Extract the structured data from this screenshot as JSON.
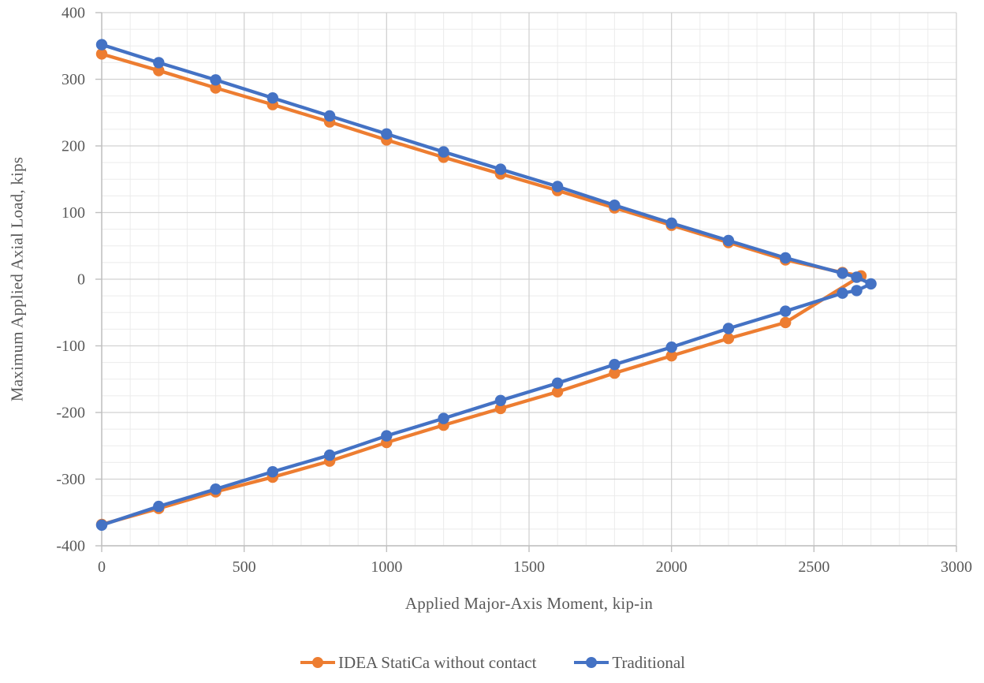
{
  "chart_data": {
    "type": "line",
    "title": "",
    "xlabel": "Applied Major-Axis Moment, kip-in",
    "ylabel": "Maximum Applied Axial Load, kips",
    "xlim": [
      0,
      3000
    ],
    "ylim": [
      -400,
      400
    ],
    "x_major_step": 500,
    "x_minor_step": 100,
    "y_major_step": 100,
    "y_minor_step": 25,
    "x_ticks": [
      0,
      500,
      1000,
      1500,
      2000,
      2500,
      3000
    ],
    "y_ticks": [
      400,
      300,
      200,
      100,
      0,
      -100,
      -200,
      -300,
      -400
    ],
    "grid": true,
    "legend_position": "bottom",
    "series": [
      {
        "name": "IDEA StatiCa without contact",
        "color": "#ED7D31",
        "points": [
          [
            0,
            338
          ],
          [
            200,
            313
          ],
          [
            400,
            287
          ],
          [
            600,
            262
          ],
          [
            800,
            236
          ],
          [
            1000,
            209
          ],
          [
            1200,
            183
          ],
          [
            1400,
            158
          ],
          [
            1600,
            133
          ],
          [
            1800,
            107
          ],
          [
            2000,
            81
          ],
          [
            2200,
            55
          ],
          [
            2400,
            29
          ],
          [
            2600,
            10
          ],
          [
            2665,
            5
          ],
          [
            2400,
            -65
          ],
          [
            2200,
            -89
          ],
          [
            2000,
            -115
          ],
          [
            1800,
            -141
          ],
          [
            1600,
            -169
          ],
          [
            1400,
            -194
          ],
          [
            1200,
            -219
          ],
          [
            1000,
            -245
          ],
          [
            800,
            -273
          ],
          [
            600,
            -297
          ],
          [
            400,
            -319
          ],
          [
            200,
            -344
          ],
          [
            0,
            -368
          ]
        ]
      },
      {
        "name": "Traditional",
        "color": "#4472C4",
        "points": [
          [
            0,
            352
          ],
          [
            200,
            325
          ],
          [
            400,
            299
          ],
          [
            600,
            272
          ],
          [
            800,
            245
          ],
          [
            1000,
            218
          ],
          [
            1200,
            191
          ],
          [
            1400,
            165
          ],
          [
            1600,
            139
          ],
          [
            1800,
            111
          ],
          [
            2000,
            84
          ],
          [
            2200,
            58
          ],
          [
            2400,
            32
          ],
          [
            2600,
            9
          ],
          [
            2650,
            3
          ],
          [
            2700,
            -7
          ],
          [
            2650,
            -17
          ],
          [
            2600,
            -21
          ],
          [
            2400,
            -48
          ],
          [
            2200,
            -74
          ],
          [
            2000,
            -102
          ],
          [
            1800,
            -128
          ],
          [
            1600,
            -156
          ],
          [
            1400,
            -182
          ],
          [
            1200,
            -209
          ],
          [
            1000,
            -235
          ],
          [
            800,
            -264
          ],
          [
            600,
            -289
          ],
          [
            400,
            -315
          ],
          [
            200,
            -341
          ],
          [
            0,
            -369
          ]
        ]
      }
    ]
  },
  "styles": {
    "minor_grid_color": "#EBEBEB",
    "major_grid_color": "#D2D2D2",
    "axis_line_color": "#BFBFBF",
    "tick_color": "#BFBFBF",
    "tick_label_color": "#595959",
    "background": "#FFFFFF"
  }
}
